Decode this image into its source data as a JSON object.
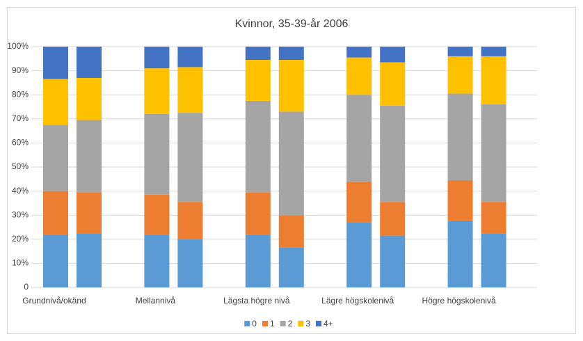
{
  "chart_data": {
    "type": "stacked_bar",
    "title": "Kvinnor, 35-39-år 2006",
    "categories": [
      "Grundnivå/okänd",
      null,
      "Mellannivå",
      null,
      "Lägsta högre nivå",
      null,
      "Lägre högskolenivå",
      null,
      "Högre högskolenivå",
      null
    ],
    "series": [
      {
        "name": "0",
        "color": "#5b9bd5",
        "values": [
          22,
          22.5,
          22,
          20,
          22,
          16.5,
          27,
          21.5,
          27.5,
          22.5
        ]
      },
      {
        "name": "1",
        "color": "#ed7d31",
        "values": [
          18,
          17,
          16.5,
          15.5,
          17.5,
          13.5,
          17,
          14,
          17,
          13
        ]
      },
      {
        "name": "2",
        "color": "#a5a5a5",
        "values": [
          27.5,
          30,
          33.5,
          37,
          38,
          43,
          36,
          40,
          36,
          40.5
        ]
      },
      {
        "name": "3",
        "color": "#ffc000",
        "values": [
          19,
          17.5,
          19,
          19,
          17,
          21.5,
          15.5,
          18,
          15.5,
          20
        ]
      },
      {
        "name": "4+",
        "color": "#4472c4",
        "values": [
          13.5,
          13,
          9,
          8.5,
          5.5,
          5.5,
          4.5,
          6.5,
          4,
          4
        ]
      }
    ],
    "ylim": [
      0,
      100
    ],
    "yticks": [
      0,
      {
        "value": 10,
        "label": "10%"
      },
      {
        "value": 20,
        "label": "20%"
      },
      {
        "value": 30,
        "label": "30%"
      },
      {
        "value": 40,
        "label": "40%"
      },
      {
        "value": 50,
        "label": "50%"
      },
      {
        "value": 60,
        "label": "60%"
      },
      {
        "value": 70,
        "label": "70%"
      },
      {
        "value": 80,
        "label": "80%"
      },
      {
        "value": 90,
        "label": "90%"
      },
      {
        "value": 100,
        "label": "100%"
      }
    ],
    "grid": true,
    "legend": "bottom"
  }
}
